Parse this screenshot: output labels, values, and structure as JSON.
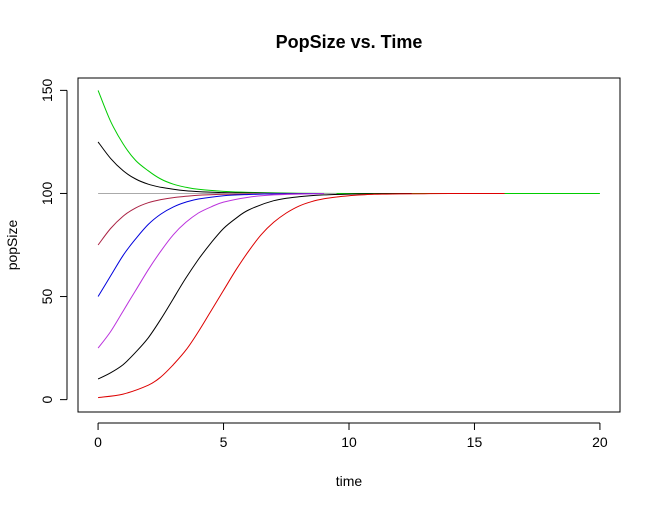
{
  "chart_data": {
    "type": "line",
    "title": "PopSize vs. Time",
    "xlabel": "time",
    "ylabel": "popSize",
    "xlim": [
      -0.8,
      20.8
    ],
    "ylim": [
      -6,
      156
    ],
    "x_ticks": [
      0,
      5,
      10,
      15,
      20
    ],
    "y_ticks": [
      0,
      50,
      100,
      150
    ],
    "grid": false,
    "legend": "none",
    "series": [
      {
        "color": "#00cc00",
        "x": [
          0,
          0.5,
          1,
          1.5,
          2,
          2.5,
          3,
          3.5,
          4,
          5,
          6,
          8,
          10,
          12,
          14,
          16,
          18,
          20
        ],
        "values": [
          150,
          135,
          124,
          116,
          111,
          107,
          104.5,
          103,
          102,
          101,
          100.5,
          100.1,
          100,
          100,
          100,
          100,
          100,
          100
        ]
      },
      {
        "color": "#000000",
        "x": [
          0,
          0.5,
          1,
          1.5,
          2,
          2.5,
          3,
          3.5,
          4,
          5,
          6,
          8,
          9.5
        ],
        "values": [
          125,
          117,
          111,
          107,
          104.5,
          103,
          102,
          101.3,
          100.9,
          100.4,
          100.2,
          100,
          100
        ]
      },
      {
        "color": "#aaaaaa",
        "x": [
          0,
          9.5
        ],
        "values": [
          100,
          100
        ]
      },
      {
        "color": "#aa2244",
        "x": [
          0,
          0.5,
          1,
          1.5,
          2,
          2.5,
          3,
          3.5,
          4,
          5,
          6,
          7,
          8,
          9
        ],
        "values": [
          75,
          83,
          89,
          93,
          95.5,
          97,
          98,
          98.6,
          99.1,
          99.6,
          99.8,
          99.9,
          100,
          100
        ]
      },
      {
        "color": "#0000dd",
        "x": [
          0,
          0.5,
          1,
          1.5,
          2,
          2.5,
          3,
          3.5,
          4,
          5,
          6,
          7,
          8,
          9
        ],
        "values": [
          50,
          60,
          70,
          78,
          85,
          90,
          93.5,
          95.8,
          97.3,
          98.9,
          99.5,
          99.8,
          99.9,
          100
        ]
      },
      {
        "color": "#bb33dd",
        "x": [
          0,
          0.5,
          1,
          1.5,
          2,
          2.5,
          3,
          3.5,
          4,
          4.5,
          5,
          6,
          7,
          8,
          9
        ],
        "values": [
          25,
          33,
          43,
          53,
          63,
          72,
          80,
          86,
          90.5,
          93.5,
          95.8,
          98.2,
          99.3,
          99.7,
          100
        ]
      },
      {
        "color": "#000000",
        "x": [
          0,
          0.5,
          1,
          1.5,
          2,
          2.5,
          3,
          3.5,
          4,
          4.5,
          5,
          5.5,
          6,
          7,
          8,
          9,
          10,
          11,
          12.5
        ],
        "values": [
          10,
          13,
          17,
          23,
          30,
          39,
          49,
          59,
          68,
          76,
          83,
          88,
          92,
          96.5,
          98.4,
          99.3,
          99.7,
          99.9,
          100
        ]
      },
      {
        "color": "#dd0000",
        "x": [
          0,
          1,
          2,
          2.5,
          3,
          3.5,
          4,
          4.5,
          5,
          5.5,
          6,
          6.5,
          7,
          7.5,
          8,
          8.5,
          9,
          9.5,
          10,
          11,
          12,
          13,
          14,
          16.2
        ],
        "values": [
          1,
          2.7,
          7,
          11,
          17,
          24,
          33,
          43,
          53,
          63,
          72,
          80,
          86,
          90.5,
          93.8,
          96,
          97.4,
          98.3,
          98.9,
          99.6,
          99.8,
          99.9,
          100,
          100
        ]
      }
    ]
  }
}
